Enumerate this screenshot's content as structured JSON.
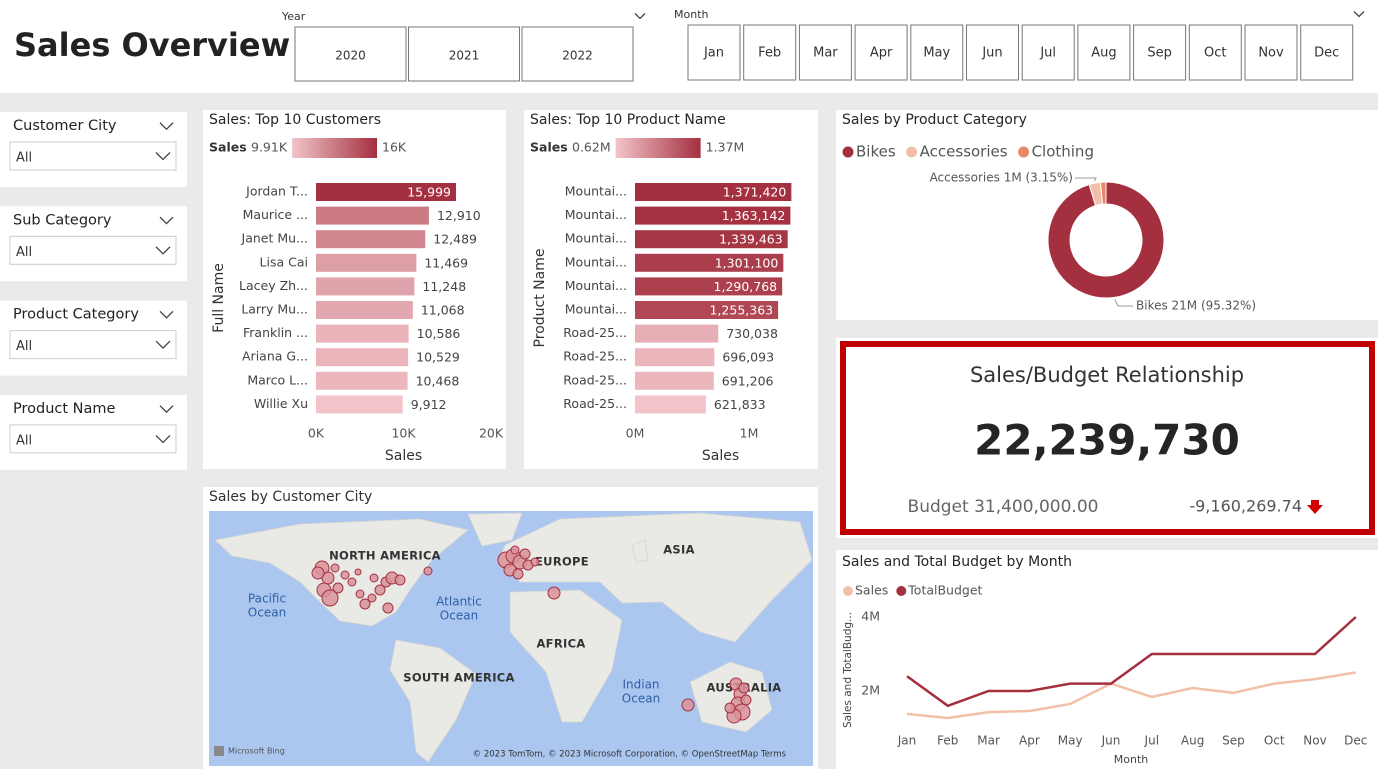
{
  "header": {
    "title": "Sales Overview"
  },
  "year_slicer": {
    "label": "Year",
    "options": [
      "2020",
      "2021",
      "2022"
    ]
  },
  "month_slicer": {
    "label": "Month",
    "options": [
      "Jan",
      "Feb",
      "Mar",
      "Apr",
      "May",
      "Jun",
      "Jul",
      "Aug",
      "Sep",
      "Oct",
      "Nov",
      "Dec"
    ]
  },
  "filters": [
    {
      "label": "Customer City",
      "value": "All"
    },
    {
      "label": "Sub Category",
      "value": "All"
    },
    {
      "label": "Product Category",
      "value": "All"
    },
    {
      "label": "Product Name",
      "value": "All"
    }
  ],
  "chart_data": [
    {
      "type": "bar",
      "orientation": "horizontal",
      "title": "Sales: Top 10 Customers",
      "categories": [
        "Jordan T...",
        "Maurice ...",
        "Janet Mu...",
        "Lisa Cai",
        "Lacey Zh...",
        "Larry Mu...",
        "Franklin ...",
        "Ariana G...",
        "Marco L...",
        "Willie Xu"
      ],
      "values": [
        15999,
        12910,
        12489,
        11469,
        11248,
        11068,
        10586,
        10529,
        10468,
        9912
      ],
      "value_labels": [
        "15,999",
        "12,910",
        "12,489",
        "11,469",
        "11,248",
        "11,068",
        "10,586",
        "10,529",
        "10,468",
        "9,912"
      ],
      "legend_label": "Sales",
      "color_scale": {
        "min": {
          "value": 9910,
          "label": "9.91K"
        },
        "max": {
          "value": 16000,
          "label": "16K"
        },
        "colors": [
          "#f2c4c9",
          "#a4303f"
        ]
      },
      "xlim": [
        0,
        20000
      ],
      "xticks": [
        {
          "value": 0,
          "label": "0K"
        },
        {
          "value": 10000,
          "label": "10K"
        },
        {
          "value": 20000,
          "label": "20K"
        }
      ],
      "xlabel": "Sales",
      "ylabel": "Full Name"
    },
    {
      "type": "bar",
      "orientation": "horizontal",
      "title": "Sales: Top 10 Product Name",
      "categories": [
        "Mountai...",
        "Mountai...",
        "Mountai...",
        "Mountai...",
        "Mountai...",
        "Mountai...",
        "Road-25...",
        "Road-25...",
        "Road-25...",
        "Road-25..."
      ],
      "values": [
        1371420,
        1363142,
        1339463,
        1301100,
        1290768,
        1255363,
        730038,
        696093,
        691206,
        621833
      ],
      "value_labels": [
        "1,371,420",
        "1,363,142",
        "1,339,463",
        "1,301,100",
        "1,290,768",
        "1,255,363",
        "730,038",
        "696,093",
        "691,206",
        "621,833"
      ],
      "legend_label": "Sales",
      "color_scale": {
        "min": {
          "value": 620000,
          "label": "0.62M"
        },
        "max": {
          "value": 1370000,
          "label": "1.37M"
        },
        "colors": [
          "#f2c4c9",
          "#a4303f"
        ]
      },
      "xlim": [
        0,
        1500000
      ],
      "xticks": [
        {
          "value": 0,
          "label": "0M"
        },
        {
          "value": 1000000,
          "label": "1M"
        }
      ],
      "xlabel": "Sales",
      "ylabel": "Product Name"
    },
    {
      "type": "pie",
      "donut": true,
      "title": "Sales by Product Category",
      "categories": [
        "Bikes",
        "Accessories",
        "Clothing"
      ],
      "values": [
        95.32,
        3.15,
        1.53
      ],
      "value_labels": [
        "Bikes 21M (95.32%)",
        "Accessories 1M (3.15%)",
        null
      ],
      "colors": [
        "#a4303f",
        "#f2c0a8",
        "#e8866a"
      ],
      "legend": "top-left"
    },
    {
      "type": "line",
      "title": "Sales and Total Budget by Month",
      "categories": [
        "Jan",
        "Feb",
        "Mar",
        "Apr",
        "May",
        "Jun",
        "Jul",
        "Aug",
        "Sep",
        "Oct",
        "Nov",
        "Dec"
      ],
      "series": [
        {
          "name": "Sales",
          "color": "#f2c0a8",
          "values": [
            1380000,
            1270000,
            1430000,
            1460000,
            1650000,
            2200000,
            1840000,
            2080000,
            1950000,
            2200000,
            2320000,
            2500000
          ]
        },
        {
          "name": "TotalBudget",
          "color": "#a4303f",
          "values": [
            2400000,
            1600000,
            2000000,
            2000000,
            2200000,
            2200000,
            3000000,
            3000000,
            3000000,
            3000000,
            3000000,
            4000000
          ]
        }
      ],
      "ylim": [
        1000000,
        4200000
      ],
      "yticks": [
        {
          "value": 2000000,
          "label": "2M"
        },
        {
          "value": 4000000,
          "label": "4M"
        }
      ],
      "xlabel": "Month",
      "ylabel": "Sales and TotalBudg...",
      "legend": "top-left"
    }
  ],
  "kpi": {
    "title": "Sales/Budget Relationship",
    "value": "22,239,730",
    "budget": "Budget 31,400,000.00",
    "variance": "-9,160,269.74"
  },
  "map": {
    "title": "Sales by Customer City",
    "regions": [
      "NORTH AMERICA",
      "EUROPE",
      "ASIA",
      "AFRICA",
      "SOUTH AMERICA",
      "AUSTRALIA"
    ],
    "oceans": [
      [
        "Pacific",
        "Ocean"
      ],
      [
        "Atlantic",
        "Ocean"
      ],
      [
        "Indian",
        "Ocean"
      ]
    ],
    "attribution": "Microsoft Bing",
    "copyright": "© 2023 TomTom, © 2023 Microsoft Corporation, © OpenStreetMap  Terms"
  }
}
